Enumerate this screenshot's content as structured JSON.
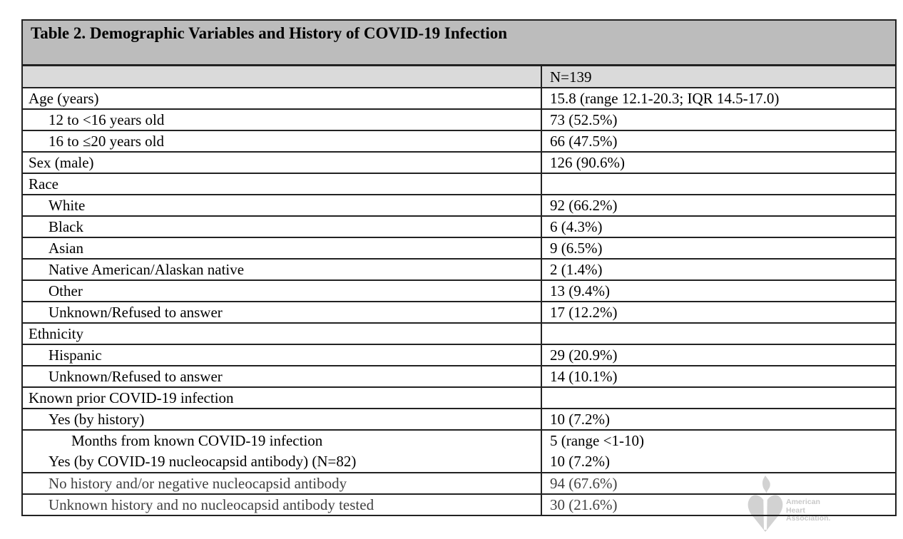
{
  "table": {
    "title": "Table 2. Demographic Variables and History of COVID-19 Infection",
    "column_header": "N=139",
    "rows": [
      {
        "label": "Age (years)",
        "indent": 0,
        "value": "15.8 (range 12.1-20.3; IQR 14.5-17.0)"
      },
      {
        "label": "12 to <16 years old",
        "indent": 1,
        "value": "73 (52.5%)"
      },
      {
        "label": "16 to ≤20 years old",
        "indent": 1,
        "value": "66 (47.5%)"
      },
      {
        "label": "Sex (male)",
        "indent": 0,
        "value": "126 (90.6%)"
      },
      {
        "label": "Race",
        "indent": 0,
        "value": ""
      },
      {
        "label": "White",
        "indent": 1,
        "value": "92 (66.2%)"
      },
      {
        "label": "Black",
        "indent": 1,
        "value": "6 (4.3%)"
      },
      {
        "label": "Asian",
        "indent": 1,
        "value": "9 (6.5%)"
      },
      {
        "label": "Native American/Alaskan native",
        "indent": 1,
        "value": "2 (1.4%)"
      },
      {
        "label": "Other",
        "indent": 1,
        "value": "13 (9.4%)"
      },
      {
        "label": "Unknown/Refused to answer",
        "indent": 1,
        "value": "17 (12.2%)"
      },
      {
        "label": "Ethnicity",
        "indent": 0,
        "value": ""
      },
      {
        "label": "Hispanic",
        "indent": 1,
        "value": "29 (20.9%)"
      },
      {
        "label": "Unknown/Refused to answer",
        "indent": 1,
        "value": "14 (10.1%)"
      },
      {
        "label": "Known prior COVID-19 infection",
        "indent": 0,
        "value": ""
      },
      {
        "label": "Yes (by history)",
        "indent": 1,
        "value": "10 (7.2%)"
      },
      {
        "group": true,
        "lines": [
          {
            "label": "Months from known COVID-19 infection",
            "indent": 2,
            "value": "5 (range <1-10)"
          },
          {
            "label": "Yes (by COVID-19 nucleocapsid antibody) (N=82)",
            "indent": 1,
            "value": "10 (7.2%)"
          }
        ]
      },
      {
        "label": "No history and/or negative nucleocapsid antibody",
        "indent": 1,
        "value": "94 (67.6%)",
        "muted": true
      },
      {
        "label": "Unknown history and no nucleocapsid antibody tested",
        "indent": 1,
        "value": "30 (21.6%)",
        "muted": true
      }
    ]
  },
  "watermark": {
    "org_lines": [
      "American",
      "Heart",
      "Association."
    ]
  },
  "colors": {
    "title_bar": "#bcbcbc",
    "header_row": "#dadada",
    "border": "#222222",
    "text": "#000000",
    "muted_text": "#404040",
    "watermark": "#d2d2d2"
  }
}
